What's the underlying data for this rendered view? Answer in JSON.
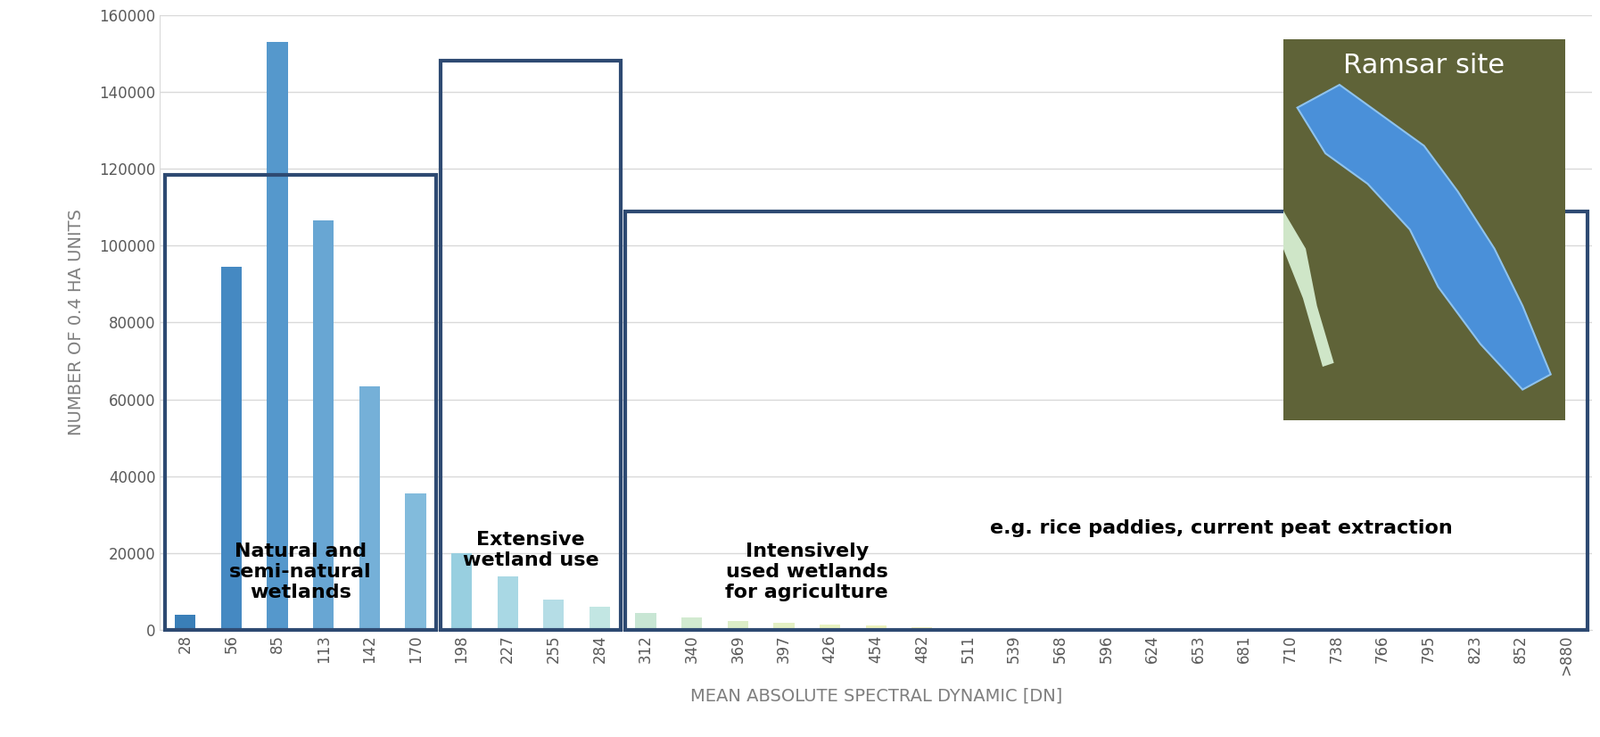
{
  "chart_data": {
    "type": "bar",
    "x_label": "MEAN ABSOLUTE SPECTRAL DYNAMIC [DN]",
    "y_label": "NUMBER OF 0.4 HA UNITS",
    "categories": [
      "28",
      "56",
      "85",
      "113",
      "142",
      "170",
      "198",
      "227",
      "255",
      "284",
      "312",
      "340",
      "369",
      "397",
      "426",
      "454",
      "482",
      "511",
      "539",
      "568",
      "596",
      "624",
      "653",
      "681",
      "710",
      "738",
      "766",
      "795",
      "823",
      "852",
      ">880"
    ],
    "values": [
      4000,
      94500,
      153000,
      106500,
      63500,
      35500,
      20000,
      14000,
      8000,
      6000,
      4500,
      3300,
      2300,
      1900,
      1500,
      1100,
      800,
      600,
      500,
      500,
      400,
      400,
      400,
      400,
      400,
      400,
      400,
      400,
      400,
      400,
      500
    ],
    "colors": [
      "#3a7fb8",
      "#4589c2",
      "#5598cc",
      "#68a6d3",
      "#75b0d8",
      "#82bbdc",
      "#98cfe0",
      "#a9d8e4",
      "#b5dde6",
      "#c2e6e3",
      "#c8e6d4",
      "#d2ead0",
      "#dcedc8",
      "#e4f0c4",
      "#e8f2c0",
      "#eef2bc",
      "#f2f0bc",
      "#f4ecc0",
      "#f4e4c4",
      "#f2dcc4",
      "#f0d4c4",
      "#eecbc4",
      "#ecc4c4",
      "#e8bcbc",
      "#e4b4b8",
      "#e0acb4",
      "#dca4b0",
      "#d89cac",
      "#d494a8",
      "#d08ca4",
      "#cc84a0"
    ],
    "ylim": [
      0,
      160000
    ],
    "yticks": [
      0,
      20000,
      40000,
      60000,
      80000,
      100000,
      120000,
      140000,
      160000
    ],
    "grid": true,
    "groups": [
      {
        "label": "Natural and\nsemi-natural\nwetlands",
        "first": "28",
        "last": "170"
      },
      {
        "label": "Extensive\nwetland use",
        "first": "198",
        "last": "284"
      },
      {
        "label": "Intensively\nused wetlands\nfor agriculture",
        "first": "312",
        "last": ">880"
      }
    ],
    "annotations": [
      "e.g. rice paddies, current peat extraction"
    ],
    "inset_label": "Ramsar site"
  }
}
